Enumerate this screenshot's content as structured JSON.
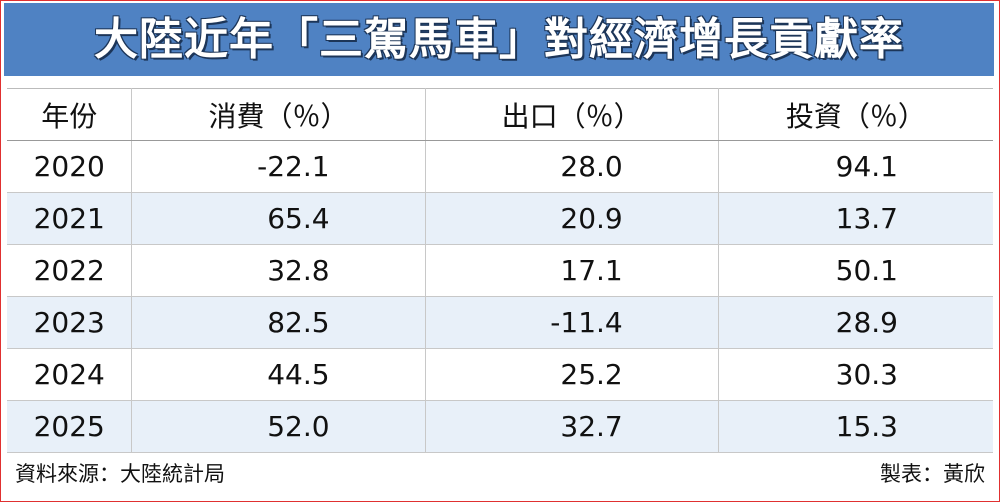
{
  "header": {
    "title": "大陸近年「三駕馬車」對經濟增長貢獻率"
  },
  "table": {
    "columns": [
      "年份",
      "消費（％）",
      "出口（％）",
      "投資（％）"
    ],
    "rows": [
      [
        "2020",
        "-22.1",
        "28.0",
        "94.1"
      ],
      [
        "2021",
        "65.4",
        "20.9",
        "13.7"
      ],
      [
        "2022",
        "32.8",
        "17.1",
        "50.1"
      ],
      [
        "2023",
        "82.5",
        "-11.4",
        "28.9"
      ],
      [
        "2024",
        "44.5",
        "25.2",
        "30.3"
      ],
      [
        "2025",
        "52.0",
        "32.7",
        "15.3"
      ]
    ]
  },
  "footer": {
    "source": "資料來源：大陸統計局",
    "credit": "製表：黃欣"
  }
}
